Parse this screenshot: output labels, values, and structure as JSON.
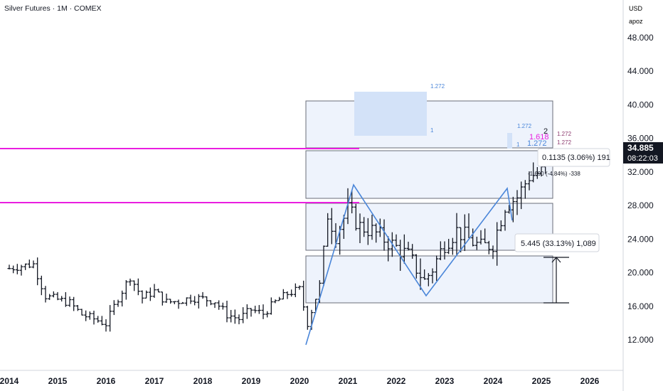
{
  "header": {
    "title": "Silver Futures · 1M · COMEX"
  },
  "scale": {
    "currency": "USD",
    "mode": "apoz"
  },
  "price_label": {
    "price": "34.885",
    "countdown": "08:22:03",
    "color": "#131722"
  },
  "measure_top": {
    "text": "0.1135 (3.06%) 191"
  },
  "measure_mid": {
    "text": "-1.690 (-4.84%) -338"
  },
  "measure_main": {
    "text": "5.445 (33.13%) 1,089"
  },
  "fib_labels": {
    "a": "1.272",
    "b": "1",
    "c": "1.272",
    "d": "1",
    "e": "1.272",
    "f": "1.618",
    "g": "1.272",
    "h": "1.272",
    "wave2": "2"
  },
  "colors": {
    "magenta": "#e91ee0",
    "blue": "#4a86d9",
    "box_fill": "#eef3fc",
    "box_stroke": "#6a6d78",
    "candle": "#131722"
  },
  "chart_data": {
    "type": "bar",
    "title": "Silver Futures · 1M · COMEX",
    "ylim": [
      10,
      52
    ],
    "y_ticks": [
      12,
      16,
      20,
      24,
      28,
      32,
      36,
      40,
      44,
      48
    ],
    "y_tick_labels": [
      "12.000",
      "16.000",
      "20.000",
      "24.000",
      "28.000",
      "32.000",
      "36.000",
      "40.000",
      "44.000",
      "48.000"
    ],
    "x_tick_labels": [
      "2014",
      "2015",
      "2016",
      "2017",
      "2018",
      "2019",
      "2020",
      "2021",
      "2022",
      "2023",
      "2024",
      "2025",
      "2026"
    ],
    "series": [
      {
        "x": [
          "2014-01",
          "2014-04",
          "2014-07",
          "2014-10",
          "2015-01",
          "2015-04",
          "2015-07",
          "2015-10",
          "2016-01",
          "2016-04",
          "2016-07",
          "2016-10",
          "2017-01",
          "2017-04",
          "2017-07",
          "2017-10",
          "2018-01",
          "2018-04",
          "2018-07",
          "2018-10",
          "2019-01",
          "2019-04",
          "2019-07",
          "2019-10",
          "2020-01",
          "2020-03",
          "2020-06",
          "2020-08",
          "2020-10",
          "2021-01",
          "2021-04",
          "2021-07",
          "2021-10",
          "2022-01",
          "2022-04",
          "2022-08",
          "2022-10",
          "2023-01",
          "2023-04",
          "2023-07",
          "2023-10",
          "2024-01",
          "2024-04",
          "2024-07",
          "2024-10",
          "2025-01",
          "2025-04"
        ],
        "close": [
          20.5,
          20.8,
          21.0,
          17.2,
          16.8,
          16.4,
          15.0,
          14.5,
          13.9,
          17.0,
          19.5,
          17.0,
          17.8,
          16.5,
          16.6,
          17.0,
          16.9,
          16.6,
          15.0,
          14.5,
          15.6,
          15.1,
          16.5,
          17.5,
          18.0,
          14.0,
          18.5,
          27.0,
          24.5,
          27.5,
          25.5,
          25.0,
          24.0,
          23.0,
          22.0,
          19.0,
          20.5,
          23.5,
          25.0,
          24.0,
          23.0,
          23.5,
          28.0,
          29.0,
          31.5,
          32.0,
          34.885
        ]
      }
    ]
  }
}
